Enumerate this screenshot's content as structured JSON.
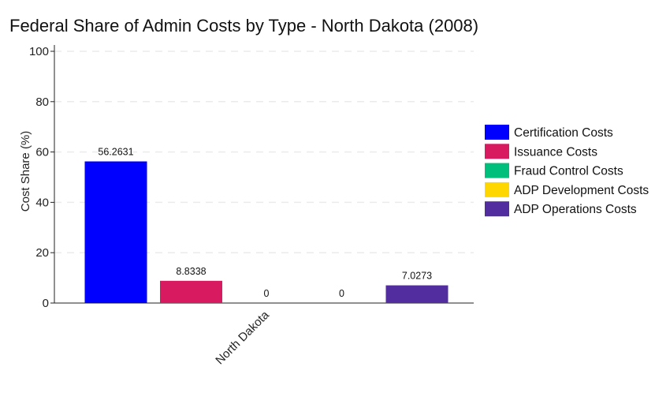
{
  "chart_data": {
    "type": "bar",
    "title": "Federal Share of Admin Costs by Type - North Dakota (2008)",
    "xlabel": "",
    "ylabel": "Cost Share (%)",
    "categories": [
      "North Dakota"
    ],
    "ylim": [
      0,
      100
    ],
    "yticks": [
      0,
      20,
      40,
      60,
      80,
      100
    ],
    "grid": "horizontal dashed",
    "legend_position": "right",
    "series": [
      {
        "name": "Certification Costs",
        "values": [
          56.2631
        ],
        "label": "56.2631",
        "color": "#0000FF"
      },
      {
        "name": "Issuance Costs",
        "values": [
          8.8338
        ],
        "label": "8.8338",
        "color": "#D81B60"
      },
      {
        "name": "Fraud Control Costs",
        "values": [
          0
        ],
        "label": "0",
        "color": "#00BF7D"
      },
      {
        "name": "ADP Development Costs",
        "values": [
          0
        ],
        "label": "0",
        "color": "#FFD700"
      },
      {
        "name": "ADP Operations Costs",
        "values": [
          7.0273
        ],
        "label": "7.0273",
        "color": "#512DA0"
      }
    ]
  }
}
